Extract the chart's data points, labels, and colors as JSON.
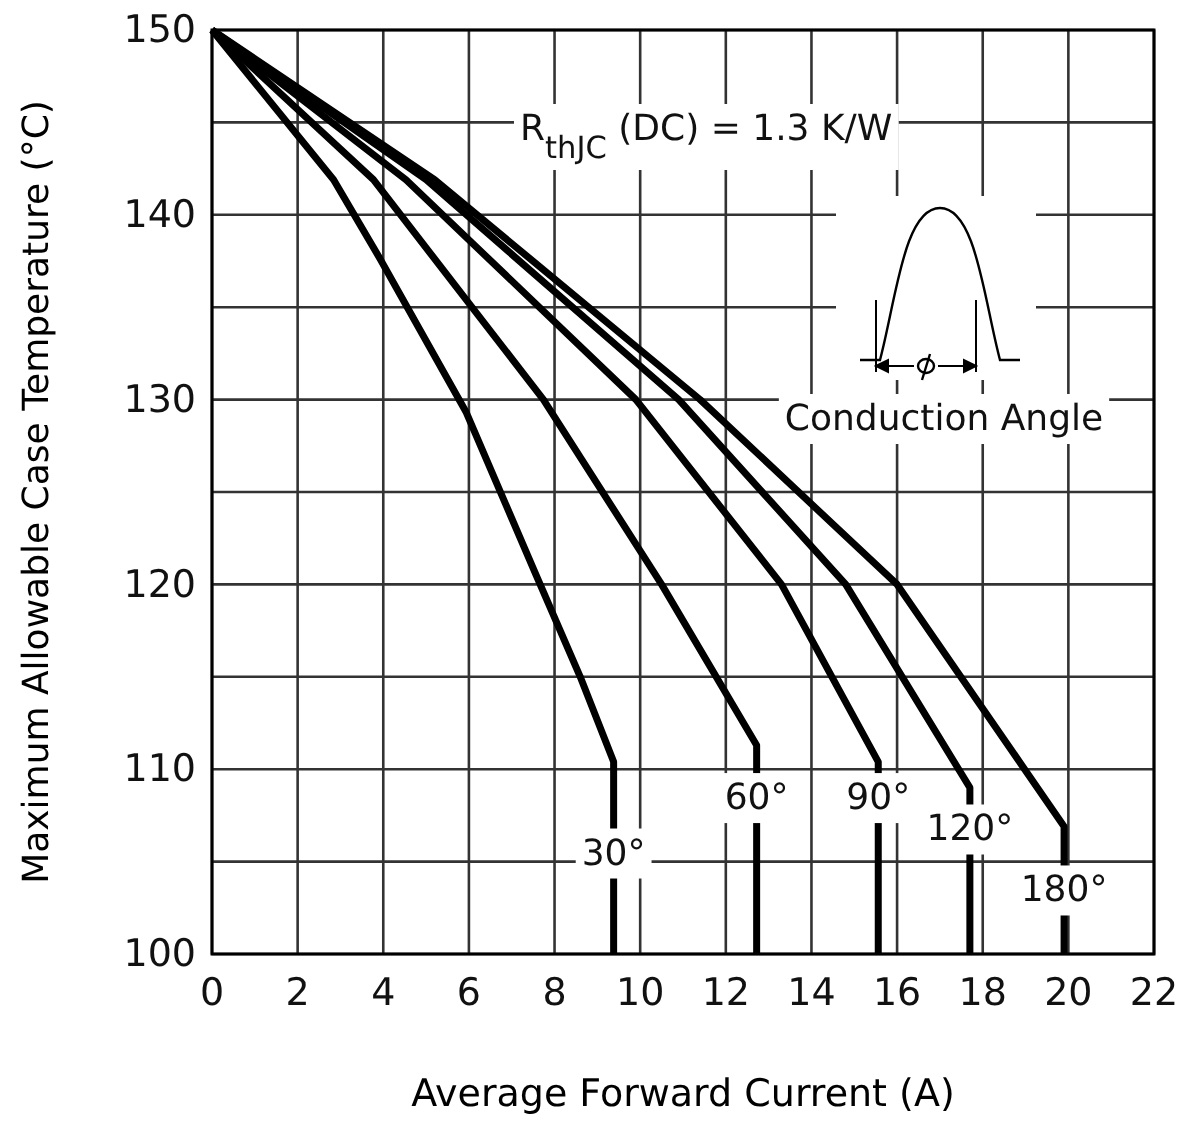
{
  "chart_data": {
    "type": "line",
    "xlabel": "Average Forward Current (A)",
    "ylabel": "Maximum Allowable Case Temperature (°C)",
    "xlim": [
      0,
      22
    ],
    "xticks": [
      0,
      2,
      4,
      6,
      8,
      10,
      12,
      14,
      16,
      18,
      20,
      22
    ],
    "ylim": [
      100,
      150
    ],
    "yticks": [
      100,
      {
        "value": 105,
        "label": null
      },
      110,
      {
        "value": 115,
        "label": null
      },
      120,
      {
        "value": 125,
        "label": null
      },
      130,
      {
        "value": 135,
        "label": null
      },
      140,
      {
        "value": 145,
        "label": null
      },
      150
    ],
    "grid": true,
    "line_style": "solid",
    "marker": "none",
    "series": [
      {
        "color": "#000000",
        "x": [
          0,
          2.84,
          3.93,
          5.94,
          7.57,
          8.6,
          9.38,
          9.38
        ],
        "values": [
          150,
          141.9,
          137.6,
          129.3,
          120.5,
          115,
          110.4,
          100
        ]
      },
      {
        "color": "#000000",
        "x": [
          0,
          3.77,
          7.74,
          10.5,
          12.72,
          12.72
        ],
        "values": [
          150,
          141.9,
          130,
          120,
          111.3,
          100
        ]
      },
      {
        "color": "#000000",
        "x": [
          0,
          4.53,
          9.9,
          13.3,
          15.56,
          15.56
        ],
        "values": [
          150,
          141.9,
          130,
          120,
          110.4,
          100
        ]
      },
      {
        "color": "#000000",
        "x": [
          0,
          5.0,
          10.9,
          14.8,
          17.7,
          17.7
        ],
        "values": [
          150,
          141.9,
          130,
          120,
          109,
          100
        ]
      },
      {
        "color": "#000000",
        "x": [
          0,
          5.2,
          11.4,
          16.0,
          19.9,
          19.9
        ],
        "values": [
          150,
          141.9,
          130,
          120,
          106.9,
          100
        ]
      }
    ],
    "annotations": [
      {
        "text": "30°",
        "x": 9.38,
        "y": 105.6
      },
      {
        "text": "60°",
        "x": 12.72,
        "y": 108.6
      },
      {
        "text": "90°",
        "x": 15.56,
        "y": 108.6
      },
      {
        "text": "120°",
        "x": 17.7,
        "y": 106.9
      },
      {
        "text": "180°",
        "x": 19.9,
        "y": 103.6
      },
      "R$_{thJC}$ (DC) = 1.3 K/W",
      "Conduction Angle"
    ]
  }
}
